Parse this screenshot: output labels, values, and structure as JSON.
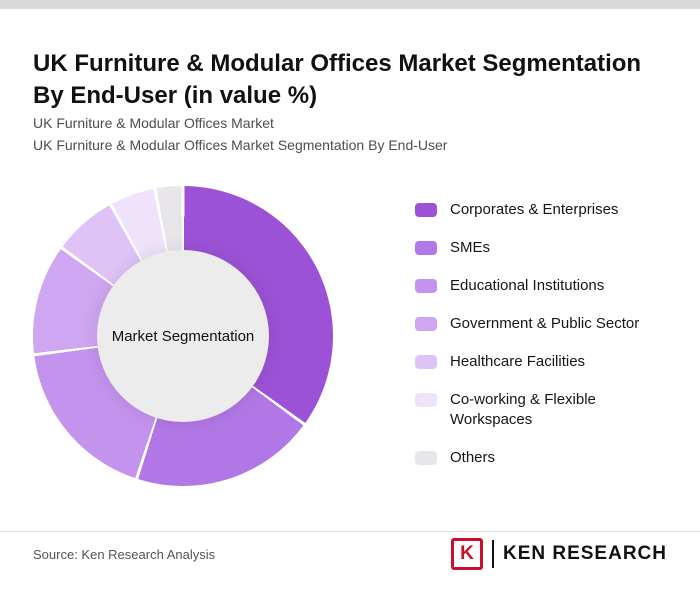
{
  "page": {
    "title": "UK Furniture & Modular Offices Market Segmentation By End-User (in value %)",
    "subtitle_line1": "UK Furniture & Modular Offices Market",
    "subtitle_line2": "UK Furniture & Modular Offices Market Segmentation By End-User",
    "source": "Source: Ken Research Analysis",
    "brand": {
      "mark_letter": "K",
      "name": "KEN RESEARCH",
      "brand_color": "#c8102e"
    }
  },
  "chart_data": {
    "type": "pie",
    "donut": true,
    "title": "UK Furniture & Modular Offices Market Segmentation By End-User (in value %)",
    "center_label": "Market Segmentation",
    "units": "value %",
    "legend_position": "right",
    "categories": [
      "Corporates & Enterprises",
      "SMEs",
      "Educational Institutions",
      "Government & Public Sector",
      "Healthcare Facilities",
      "Co-working & Flexible Workspaces",
      "Others"
    ],
    "values": [
      35,
      20,
      18,
      12,
      7,
      5,
      3
    ],
    "colors": [
      "#9C52D6",
      "#B277E6",
      "#C493EE",
      "#CFA6F1",
      "#DFC3F7",
      "#EFE3FC",
      "#E8E6EB"
    ],
    "start_angle_deg": 0,
    "separator_color": "#ffffff",
    "hole_color": "#ececec"
  }
}
